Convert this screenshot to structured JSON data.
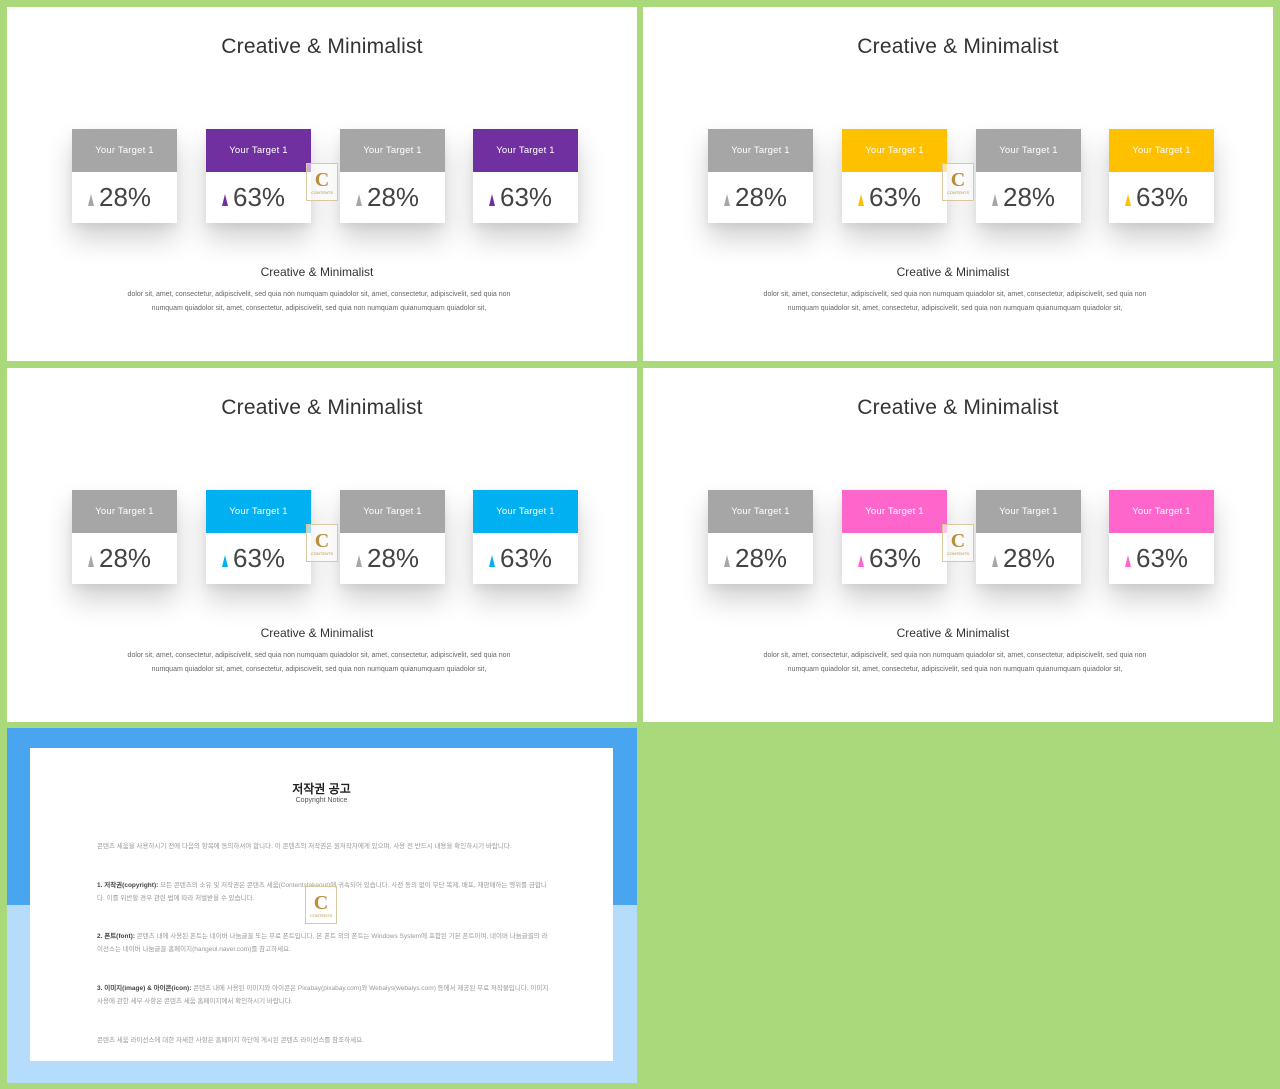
{
  "slides": [
    {
      "title": "Creative & Minimalist",
      "accent": "#7030a0",
      "cards": [
        {
          "label": "Your Target 1",
          "value": "28%",
          "highlight": false
        },
        {
          "label": "Your Target 1",
          "value": "63%",
          "highlight": true
        },
        {
          "label": "Your Target 1",
          "value": "28%",
          "highlight": false
        },
        {
          "label": "Your Target 1",
          "value": "63%",
          "highlight": true
        }
      ],
      "subtitle": "Creative & Minimalist",
      "body": "dolor sit, amet, consectetur, adipiscivelit, sed quia non numquam  quiadolor sit, amet, consectetur, adipiscivelit, sed quia non numquam  quiadolor sit, amet, consectetur, adipiscivelit, sed quia non numquam  quianumquam  quiadolor sit,"
    },
    {
      "title": "Creative & Minimalist",
      "accent": "#ffc000",
      "cards": [
        {
          "label": "Your Target 1",
          "value": "28%",
          "highlight": false
        },
        {
          "label": "Your Target 1",
          "value": "63%",
          "highlight": true
        },
        {
          "label": "Your Target 1",
          "value": "28%",
          "highlight": false
        },
        {
          "label": "Your Target 1",
          "value": "63%",
          "highlight": true
        }
      ],
      "subtitle": "Creative & Minimalist",
      "body": "dolor sit, amet, consectetur, adipiscivelit, sed quia non numquam  quiadolor sit, amet, consectetur, adipiscivelit, sed quia non numquam  quiadolor sit, amet, consectetur, adipiscivelit, sed quia non numquam  quianumquam  quiadolor sit,"
    },
    {
      "title": "Creative & Minimalist",
      "accent": "#00b0f0",
      "cards": [
        {
          "label": "Your Target 1",
          "value": "28%",
          "highlight": false
        },
        {
          "label": "Your Target 1",
          "value": "63%",
          "highlight": true
        },
        {
          "label": "Your Target 1",
          "value": "28%",
          "highlight": false
        },
        {
          "label": "Your Target 1",
          "value": "63%",
          "highlight": true
        }
      ],
      "subtitle": "Creative & Minimalist",
      "body": "dolor sit, amet, consectetur, adipiscivelit, sed quia non numquam  quiadolor sit, amet, consectetur, adipiscivelit, sed quia non numquam  quiadolor sit, amet, consectetur, adipiscivelit, sed quia non numquam  quianumquam  quiadolor sit,"
    },
    {
      "title": "Creative & Minimalist",
      "accent": "#ff66cc",
      "cards": [
        {
          "label": "Your Target 1",
          "value": "28%",
          "highlight": false
        },
        {
          "label": "Your Target 1",
          "value": "63%",
          "highlight": true
        },
        {
          "label": "Your Target 1",
          "value": "28%",
          "highlight": false
        },
        {
          "label": "Your Target 1",
          "value": "63%",
          "highlight": true
        }
      ],
      "subtitle": "Creative & Minimalist",
      "body": "dolor sit, amet, consectetur, adipiscivelit, sed quia non numquam  quiadolor sit, amet, consectetur, adipiscivelit, sed quia non numquam  quiadolor sit, amet, consectetur, adipiscivelit, sed quia non numquam  quianumquam  quiadolor sit,"
    }
  ],
  "colors": {
    "neutral_header": "#a6a6a6",
    "page_background": "#a9d97a",
    "notice_top": "#4aa5f0",
    "notice_bottom": "#b5dcfa"
  },
  "logo": {
    "letter": "C",
    "small_text": "CONTENTS"
  },
  "notice": {
    "title": "저작권 공고",
    "subtitle": "Copyright Notice",
    "intro": "콘텐츠 세움을 사용하시기 전에 다음의 항목에 동의하셔야 합니다. 이 콘텐츠의 저작권은 원저작자에게 있으며, 사용 전 반드시 내용을 확인하시기 바랍니다.",
    "items": [
      {
        "label": "1. 저작권(copyright):",
        "text": " 모든 콘텐츠의 소유 및 저작권은 콘텐츠 세움(Contentstakeout)에 귀속되어 있습니다. 사전 동의 없이 무단 복제, 배포, 재판매하는 행위를 금합니다. 이를 위반할 경우 관련 법에 따라 처벌받을 수 있습니다."
      },
      {
        "label": "2. 폰트(font):",
        "text": " 콘텐츠 내에 사용된 폰트는 네이버 나눔글꼴 또는 무료 폰트입니다. 본 폰트 외의 폰트는 Windows System에 포함된 기본 폰트이며, 네이버 나눔글꼴의 라이선스는 네이버 나눔글꼴 홈페이지(hangeul.naver.com)를 참고하세요."
      },
      {
        "label": "3. 이미지(image) & 아이콘(icon):",
        "text": " 콘텐츠 내에 사용된 이미지와 아이콘은 Pixabay(pixabay.com)와 Webalys(webalys.com) 등에서 제공된 무료 저작물입니다. 이미지 사용에 관한 세부 사항은 콘텐츠 세움 홈페이지에서 확인하시기 바랍니다."
      }
    ],
    "outro": "콘텐츠 세움 라이선스에 대한 자세한 사항은 홈페이지 하단에 게시된 콘텐츠 라이선스를 참조하세요."
  }
}
